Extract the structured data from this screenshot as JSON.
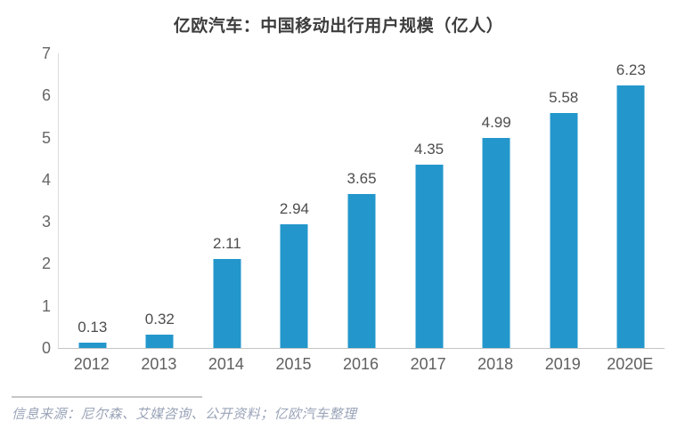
{
  "chart_data": {
    "type": "bar",
    "title": "亿欧汽车：中国移动出行用户规模（亿人）",
    "categories": [
      "2012",
      "2013",
      "2014",
      "2015",
      "2016",
      "2017",
      "2018",
      "2019",
      "2020E"
    ],
    "values": [
      0.13,
      0.32,
      2.11,
      2.94,
      3.65,
      4.35,
      4.99,
      5.58,
      6.23
    ],
    "value_labels": [
      "0.13",
      "0.32",
      "2.11",
      "2.94",
      "3.65",
      "4.35",
      "4.99",
      "5.58",
      "6.23"
    ],
    "xlabel": "",
    "ylabel": "",
    "ylim": [
      0,
      7
    ],
    "y_ticks": [
      0,
      1,
      2,
      3,
      4,
      5,
      6,
      7
    ],
    "grid": false,
    "legend_position": "none",
    "bar_color": "#2397cc"
  },
  "footer": {
    "source_text": "信息来源：尼尔森、艾媒咨询、公开资料；亿欧汽车整理"
  },
  "colors": {
    "background": "#ffffff",
    "title_text": "#3d3d3d",
    "axis_tick_text": "#666666",
    "value_label_text": "#4d4d4d",
    "y_axis_line": "#dcdcdc",
    "baseline": "#c5c5c5",
    "divider": "#c6c6c6",
    "source_text": "#9aa4b8"
  }
}
